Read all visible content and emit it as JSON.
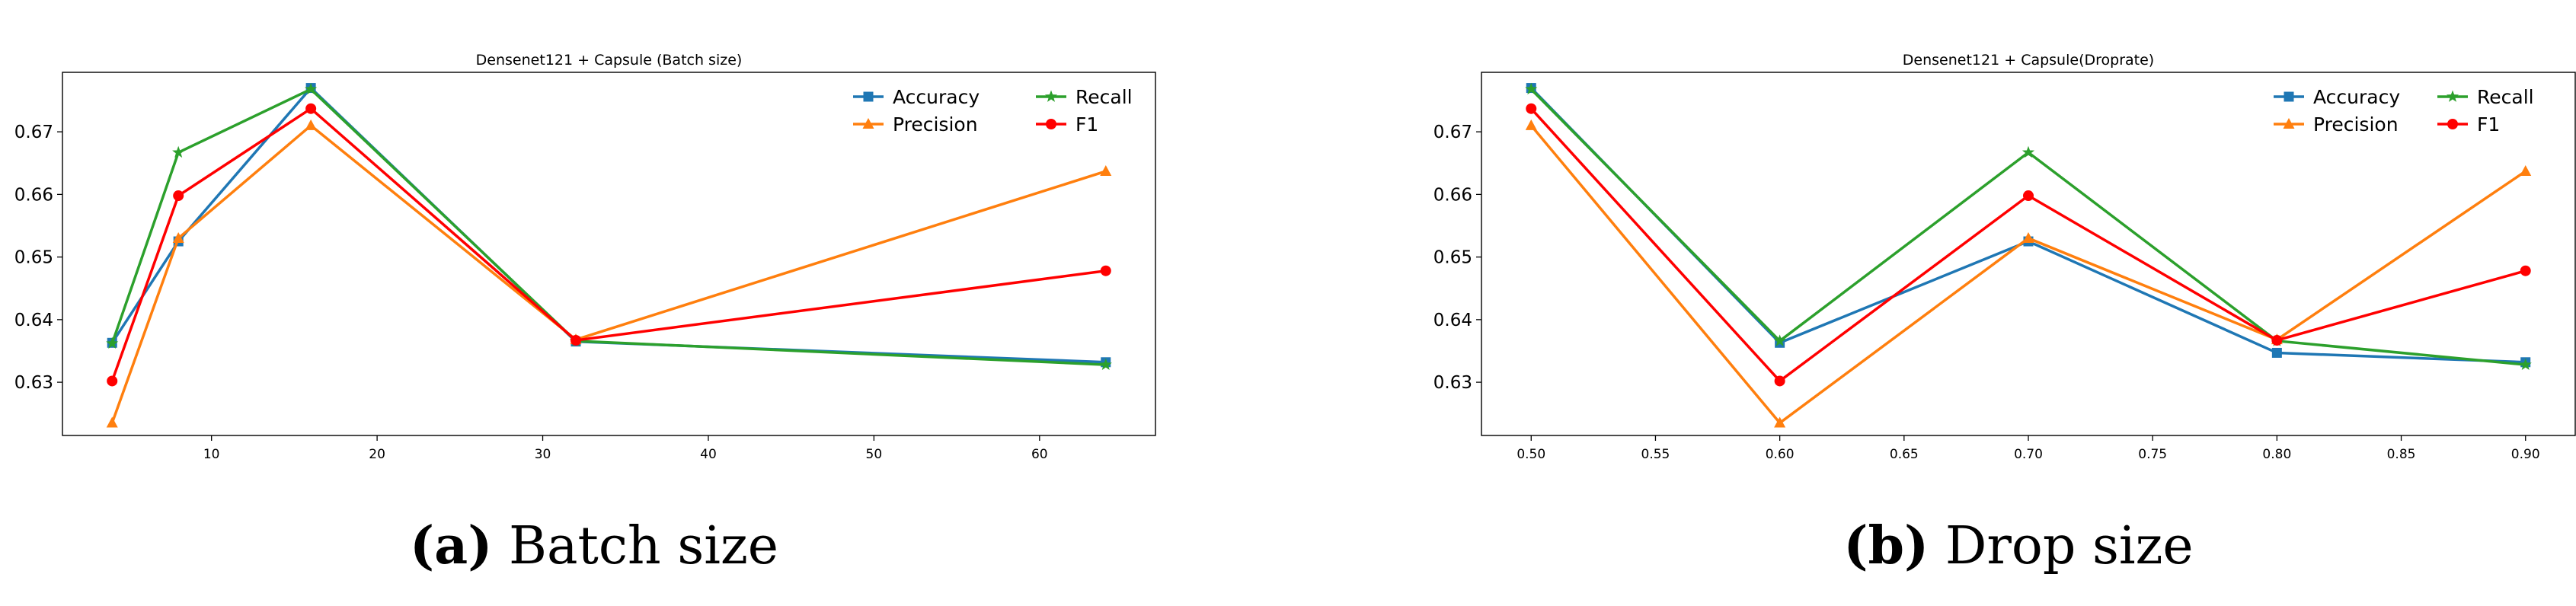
{
  "chart_data": [
    {
      "type": "line",
      "title": "Densenet121 + Capsule (Batch size)",
      "xlabel": "",
      "ylabel": "",
      "x": [
        4,
        8,
        16,
        32,
        64
      ],
      "xlim": [
        1,
        67
      ],
      "ylim": [
        0.6215,
        0.6795
      ],
      "xticks": [
        10,
        20,
        30,
        40,
        50,
        60
      ],
      "xtick_labels": [
        "10",
        "20",
        "30",
        "40",
        "50",
        "60"
      ],
      "yticks": [
        0.63,
        0.64,
        0.65,
        0.66,
        0.67
      ],
      "ytick_labels": [
        "0.63",
        "0.64",
        "0.65",
        "0.66",
        "0.67"
      ],
      "grid": false,
      "legend": "top-right",
      "series": [
        {
          "name": "Accuracy",
          "color": "#1f77b4",
          "marker": "square",
          "values": [
            0.6363,
            0.6525,
            0.677,
            0.6365,
            0.6332
          ]
        },
        {
          "name": "Precision",
          "color": "#ff7f0e",
          "marker": "triangle",
          "values": [
            0.6235,
            0.653,
            0.671,
            0.6368,
            0.6637
          ]
        },
        {
          "name": "Recall",
          "color": "#2ca02c",
          "marker": "star",
          "values": [
            0.6362,
            0.6667,
            0.6768,
            0.6366,
            0.6328
          ]
        },
        {
          "name": "F1",
          "color": "#ff0000",
          "marker": "circle",
          "values": [
            0.6302,
            0.6598,
            0.6737,
            0.6367,
            0.6478
          ]
        }
      ],
      "caption": {
        "label": "(a)",
        "text": "Batch size"
      }
    },
    {
      "type": "line",
      "title": "Densenet121 + Capsule(Droprate)",
      "xlabel": "",
      "ylabel": "",
      "x": [
        0.5,
        0.6,
        0.7,
        0.8,
        0.9
      ],
      "xlim": [
        0.48,
        0.92
      ],
      "ylim": [
        0.6215,
        0.6795
      ],
      "xticks": [
        0.5,
        0.55,
        0.6,
        0.65,
        0.7,
        0.75,
        0.8,
        0.85,
        0.9
      ],
      "xtick_labels": [
        "0.50",
        "0.55",
        "0.60",
        "0.65",
        "0.70",
        "0.75",
        "0.80",
        "0.85",
        "0.90"
      ],
      "yticks": [
        0.63,
        0.64,
        0.65,
        0.66,
        0.67
      ],
      "ytick_labels": [
        "0.63",
        "0.64",
        "0.65",
        "0.66",
        "0.67"
      ],
      "grid": false,
      "legend": "top-right",
      "series": [
        {
          "name": "Accuracy",
          "color": "#1f77b4",
          "marker": "square",
          "values": [
            0.677,
            0.6363,
            0.6525,
            0.6347,
            0.6332
          ]
        },
        {
          "name": "Precision",
          "color": "#ff7f0e",
          "marker": "triangle",
          "values": [
            0.671,
            0.6235,
            0.653,
            0.6368,
            0.6637
          ]
        },
        {
          "name": "Recall",
          "color": "#2ca02c",
          "marker": "star",
          "values": [
            0.6768,
            0.6366,
            0.6667,
            0.6366,
            0.6328
          ]
        },
        {
          "name": "F1",
          "color": "#ff0000",
          "marker": "circle",
          "values": [
            0.6737,
            0.6302,
            0.6598,
            0.6367,
            0.6478
          ]
        }
      ],
      "caption": {
        "label": "(b)",
        "text": "Drop size"
      }
    }
  ]
}
